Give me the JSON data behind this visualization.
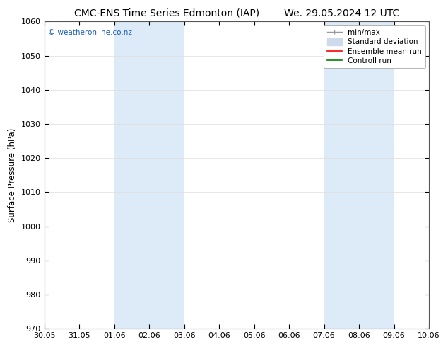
{
  "title_left": "CMC-ENS Time Series Edmonton (IAP)",
  "title_right": "We. 29.05.2024 12 UTC",
  "ylabel": "Surface Pressure (hPa)",
  "xlabel": "",
  "ylim": [
    970,
    1060
  ],
  "yticks": [
    970,
    980,
    990,
    1000,
    1010,
    1020,
    1030,
    1040,
    1050,
    1060
  ],
  "xtick_labels": [
    "30.05",
    "31.05",
    "01.06",
    "02.06",
    "03.06",
    "04.06",
    "05.06",
    "06.06",
    "07.06",
    "08.06",
    "09.06",
    "10.06"
  ],
  "xtick_positions": [
    0,
    1,
    2,
    3,
    4,
    5,
    6,
    7,
    8,
    9,
    10,
    11
  ],
  "shaded_bands": [
    {
      "x_start": 2,
      "x_end": 4,
      "color": "#ddeaf7"
    },
    {
      "x_start": 8,
      "x_end": 10,
      "color": "#ddeaf7"
    }
  ],
  "watermark_text": "© weatheronline.co.nz",
  "watermark_color": "#1a5fb4",
  "legend_labels": [
    "min/max",
    "Standard deviation",
    "Ensemble mean run",
    "Controll run"
  ],
  "legend_colors": [
    "#aaaaaa",
    "#ccdaeb",
    "red",
    "green"
  ],
  "bg_color": "#ffffff",
  "plot_bg_color": "#ffffff",
  "grid_color": "#dddddd",
  "title_fontsize": 10,
  "axis_fontsize": 8.5,
  "tick_fontsize": 8
}
